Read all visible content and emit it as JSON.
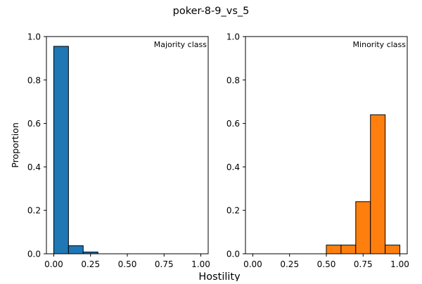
{
  "figure": {
    "title": "poker-8-9_vs_5",
    "xlabel": "Hostility",
    "ylabel": "Proportion"
  },
  "chart_data": [
    {
      "type": "bar",
      "title": "Majority class",
      "bin_edges": [
        0.0,
        0.1,
        0.2,
        0.3,
        0.4,
        0.5,
        0.6,
        0.7,
        0.8,
        0.9,
        1.0
      ],
      "values": [
        0.955,
        0.037,
        0.008,
        0,
        0,
        0,
        0,
        0,
        0,
        0
      ],
      "xlim": [
        -0.05,
        1.05
      ],
      "ylim": [
        0,
        1.0
      ],
      "xticks": [
        0.0,
        0.25,
        0.5,
        0.75,
        1.0
      ],
      "xtick_labels": [
        "0.00",
        "0.25",
        "0.50",
        "0.75",
        "1.00"
      ],
      "yticks": [
        0.0,
        0.2,
        0.4,
        0.6,
        0.8,
        1.0
      ],
      "ytick_labels": [
        "0.0",
        "0.2",
        "0.4",
        "0.6",
        "0.8",
        "1.0"
      ],
      "color": "#1f77b4",
      "ylabel": "Proportion"
    },
    {
      "type": "bar",
      "title": "Minority class",
      "bin_edges": [
        0.0,
        0.1,
        0.2,
        0.3,
        0.4,
        0.5,
        0.6,
        0.7,
        0.8,
        0.9,
        1.0
      ],
      "values": [
        0,
        0,
        0,
        0,
        0,
        0.04,
        0.04,
        0.24,
        0.64,
        0.04
      ],
      "xlim": [
        -0.05,
        1.05
      ],
      "ylim": [
        0,
        1.0
      ],
      "xticks": [
        0.0,
        0.25,
        0.5,
        0.75,
        1.0
      ],
      "xtick_labels": [
        "0.00",
        "0.25",
        "0.50",
        "0.75",
        "1.00"
      ],
      "yticks": [
        0.0,
        0.2,
        0.4,
        0.6,
        0.8,
        1.0
      ],
      "ytick_labels": [
        "0.0",
        "0.2",
        "0.4",
        "0.6",
        "0.8",
        "1.0"
      ],
      "color": "#ff7f0e",
      "ylabel": ""
    }
  ]
}
